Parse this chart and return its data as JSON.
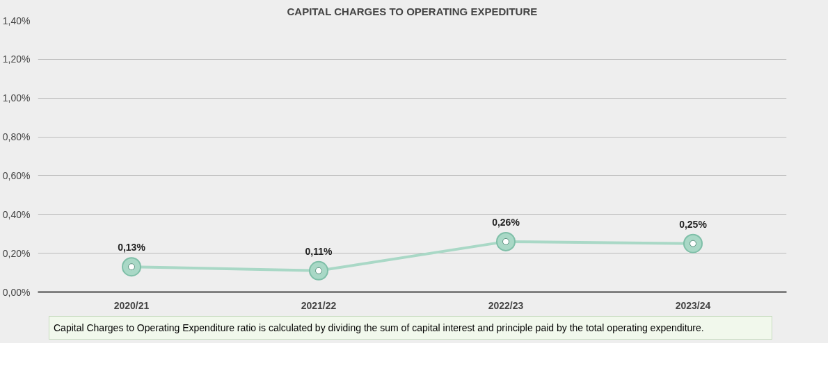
{
  "chart_data": {
    "type": "line",
    "title": "CAPITAL CHARGES TO OPERATING EXPEDITURE",
    "categories": [
      "2020/21",
      "2021/22",
      "2022/23",
      "2023/24"
    ],
    "series": [
      {
        "color": "#a9d8c6",
        "values": [
          0.13,
          0.11,
          0.26,
          0.25
        ]
      }
    ],
    "value_labels": [
      "0,13%",
      "0,11%",
      "0,26%",
      "0,25%"
    ],
    "ylim": [
      0,
      1.4
    ],
    "yticks": [
      {
        "value": 0,
        "label": "0,00%"
      },
      {
        "value": 0.2,
        "label": "0,20%"
      },
      {
        "value": 0.4,
        "label": "0,40%"
      },
      {
        "value": 0.6,
        "label": "0,60%"
      },
      {
        "value": 0.8,
        "label": "0,80%"
      },
      {
        "value": 1.0,
        "label": "1,00%"
      },
      {
        "value": 1.2,
        "label": "1,20%"
      },
      {
        "value": 1.4,
        "label": "1,40%"
      }
    ],
    "grid": "y",
    "marker": "circle",
    "line_style": "solid",
    "annotations": [
      "Capital Charges to Operating Expenditure ratio is calculated by dividing the sum of capital interest and principle paid by the total operating expenditure."
    ]
  }
}
